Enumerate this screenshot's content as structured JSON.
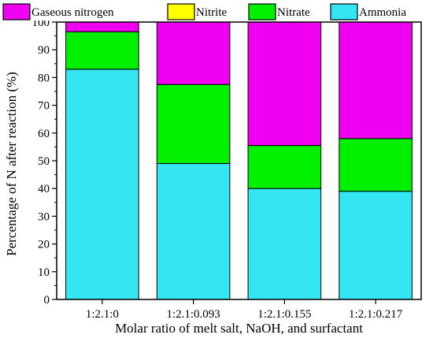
{
  "chart_data": {
    "type": "bar",
    "stacked": true,
    "categories": [
      "1:2.1:0",
      "1:2.1:0.093",
      "1:2.1:0.155",
      "1:2.1:0.217"
    ],
    "series": [
      {
        "name": "Ammonia",
        "color": "#33E6F2",
        "values": [
          83,
          49,
          40,
          39
        ]
      },
      {
        "name": "Nitrate",
        "color": "#00F000",
        "values": [
          13.5,
          28.5,
          15.5,
          19
        ]
      },
      {
        "name": "Nitrite",
        "color": "#FFFF00",
        "values": [
          0,
          0,
          0,
          0
        ]
      },
      {
        "name": "Gaseous nitrogen",
        "color": "#F000F0",
        "values": [
          3.5,
          22.5,
          44.5,
          42
        ]
      }
    ],
    "legend_order": [
      "Gaseous nitrogen",
      "Nitrite",
      "Nitrate",
      "Ammonia"
    ],
    "legend_position": "top",
    "xlabel": "Molar ratio of melt salt, NaOH, and surfactant",
    "ylabel": "Percentage of N after reaction (%)",
    "ylim": [
      0,
      100
    ],
    "yticks": [
      0,
      10,
      20,
      30,
      40,
      50,
      60,
      70,
      80,
      90,
      100
    ],
    "grid": false
  }
}
